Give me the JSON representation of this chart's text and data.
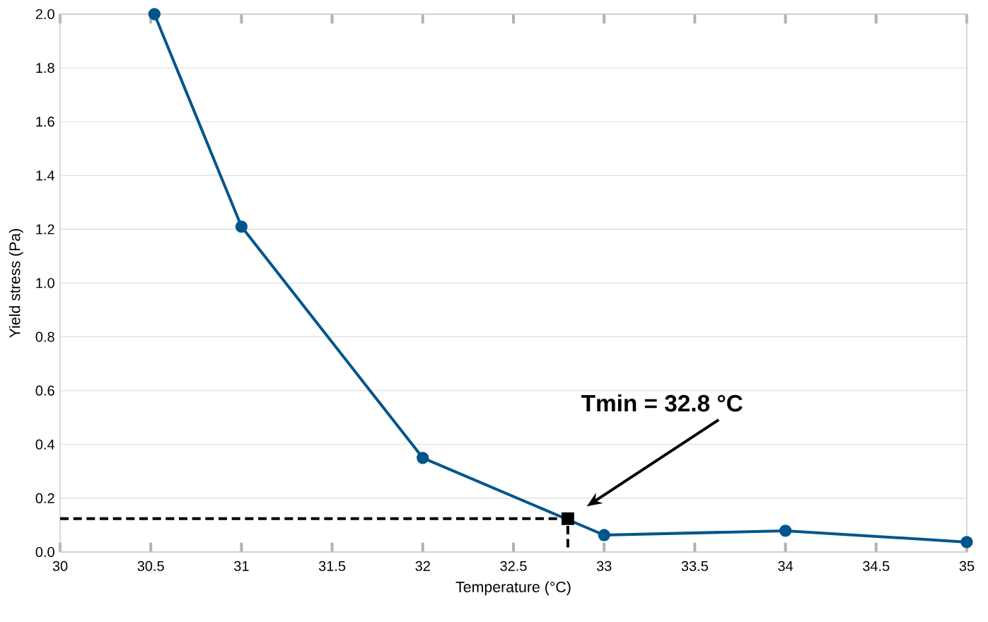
{
  "chart_data": {
    "type": "line",
    "xlabel": "Temperature (°C)",
    "ylabel": "Yield stress (Pa)",
    "xlim": [
      30,
      35
    ],
    "ylim": [
      0,
      2.0
    ],
    "xticks": [
      30,
      30.5,
      31,
      31.5,
      32,
      32.5,
      33,
      33.5,
      34,
      34.5,
      35
    ],
    "yticks": [
      {
        "value": 0,
        "label": "0.0"
      },
      {
        "value": 0.2,
        "label": "0.2"
      },
      {
        "value": 0.4,
        "label": "0.4"
      },
      {
        "value": 0.6,
        "label": "0.6"
      },
      {
        "value": 0.8,
        "label": "0.8"
      },
      {
        "value": 1.0,
        "label": "1.0"
      },
      {
        "value": 1.2,
        "label": "1.2"
      },
      {
        "value": 1.4,
        "label": "1.4"
      },
      {
        "value": 1.6,
        "label": "1.6"
      },
      {
        "value": 1.8,
        "label": "1.8"
      },
      {
        "value": 2.0,
        "label": "2.0"
      }
    ],
    "grid": "y",
    "series": [
      {
        "color": "#00558c",
        "marker": "circle",
        "line_style": "solid",
        "x": [
          30.52,
          31,
          32,
          33,
          34,
          35
        ],
        "values": [
          2.0,
          1.21,
          0.35,
          0.063,
          0.079,
          0.037
        ]
      },
      {
        "type": "line",
        "color": "#000000",
        "marker": "none",
        "line_style": "dashed",
        "x": [
          30,
          32.8,
          32.8
        ],
        "values": [
          0.124,
          0.124,
          0
        ]
      },
      {
        "type": "scatter",
        "color": "#000000",
        "marker": "square",
        "x": [
          32.8
        ],
        "values": [
          0.124
        ]
      }
    ],
    "annotations": [
      "Tmin = 32.8 °C"
    ]
  }
}
